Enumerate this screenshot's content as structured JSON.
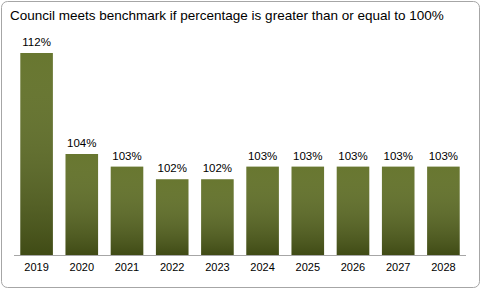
{
  "chart_data": {
    "type": "bar",
    "title": "Council meets benchmark if percentage is greater than or equal to 100%",
    "categories": [
      "2019",
      "2020",
      "2021",
      "2022",
      "2023",
      "2024",
      "2025",
      "2026",
      "2027",
      "2028"
    ],
    "values": [
      112,
      104,
      103,
      102,
      102,
      103,
      103,
      103,
      103,
      103
    ],
    "value_labels": [
      "112%",
      "104%",
      "103%",
      "102%",
      "102%",
      "103%",
      "103%",
      "103%",
      "103%",
      "103%"
    ],
    "color": "#5b6b1e",
    "ylim": [
      96,
      112
    ],
    "grid": false,
    "data_labels": true,
    "tick_labels": "x"
  }
}
